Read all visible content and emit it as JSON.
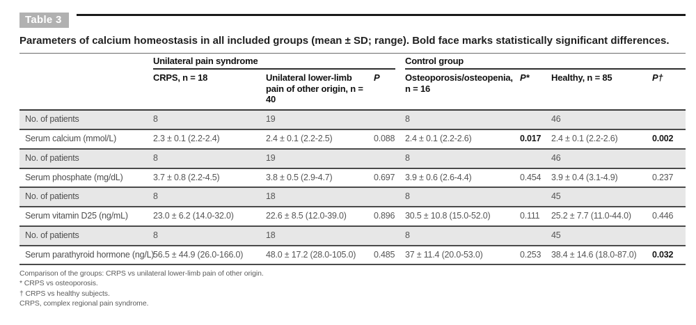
{
  "page": {
    "table_label": "Table 3",
    "title": "Parameters of calcium homeostasis in all included groups (mean ± SD; range). Bold face marks statistically significant differences."
  },
  "table": {
    "groups": [
      {
        "label": "Unilateral pain syndrome",
        "span": 3
      },
      {
        "label": "Control group",
        "span": 4
      }
    ],
    "columns": [
      "",
      "CRPS, n = 18",
      "Unilateral lower-limb pain of other origin, n = 40",
      "P",
      "Osteoporosis/osteopenia, n = 16",
      "P*",
      "Healthy, n = 85",
      "P†"
    ],
    "rows": [
      {
        "label": "No. of patients",
        "cells": [
          "8",
          "19",
          "",
          "8",
          "",
          "46",
          ""
        ],
        "shaded": true
      },
      {
        "label": "Serum calcium (mmol/L)",
        "cells": [
          "2.3 ± 0.1 (2.2-2.4)",
          "2.4 ± 0.1 (2.2-2.5)",
          "0.088",
          "2.4 ± 0.1 (2.2-2.6)",
          "0.017",
          "2.4 ± 0.1 (2.2-2.6)",
          "0.002"
        ],
        "bold_cells": [
          4,
          6
        ],
        "shaded": false
      },
      {
        "label": "No. of patients",
        "cells": [
          "8",
          "19",
          "",
          "8",
          "",
          "46",
          ""
        ],
        "shaded": true
      },
      {
        "label": "Serum phosphate (mg/dL)",
        "cells": [
          "3.7 ± 0.8 (2.2-4.5)",
          "3.8 ± 0.5 (2.9-4.7)",
          "0.697",
          "3.9 ± 0.6 (2.6-4.4)",
          "0.454",
          "3.9 ± 0.4 (3.1-4.9)",
          "0.237"
        ],
        "bold_cells": [],
        "shaded": false
      },
      {
        "label": "No. of patients",
        "cells": [
          "8",
          "18",
          "",
          "8",
          "",
          "45",
          ""
        ],
        "shaded": true
      },
      {
        "label": "Serum vitamin D25 (ng/mL)",
        "cells": [
          "23.0 ± 6.2 (14.0-32.0)",
          "22.6 ± 8.5 (12.0-39.0)",
          "0.896",
          "30.5 ± 10.8 (15.0-52.0)",
          "0.111",
          "25.2 ± 7.7 (11.0-44.0)",
          "0.446"
        ],
        "bold_cells": [],
        "shaded": false
      },
      {
        "label": "No. of patients",
        "cells": [
          "8",
          "18",
          "",
          "8",
          "",
          "45",
          ""
        ],
        "shaded": true
      },
      {
        "label": "Serum parathyroid hormone (ng/L)",
        "cells": [
          "56.5 ± 44.9 (26.0-166.0)",
          "48.0 ± 17.2 (28.0-105.0)",
          "0.485",
          "37 ± 11.4 (20.0-53.0)",
          "0.253",
          "38.4 ± 14.6 (18.0-87.0)",
          "0.032"
        ],
        "bold_cells": [
          6
        ],
        "shaded": false
      }
    ]
  },
  "footnotes": [
    "Comparison of the groups: CRPS vs unilateral lower-limb pain of other origin.",
    "* CRPS vs osteoporosis.",
    "† CRPS vs healthy subjects.",
    "CRPS, complex regional pain syndrome."
  ],
  "colors": {
    "shaded_row": "#e7e7e7",
    "label_chip_bg": "#b1b1b1",
    "rule_dark": "#1a1a1a"
  }
}
